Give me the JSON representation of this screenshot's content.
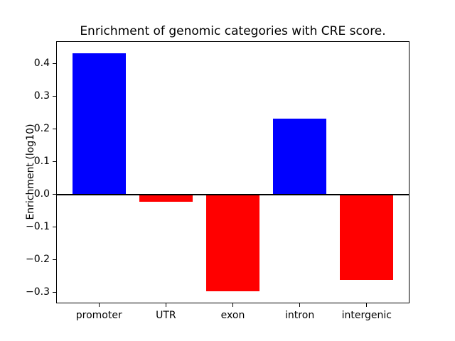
{
  "chart_data": {
    "type": "bar",
    "title": "Enrichment of genomic categories with CRE score.",
    "ylabel": "Enrichment (log10)",
    "xlabel": "",
    "categories": [
      "promoter",
      "UTR",
      "exon",
      "intron",
      "intergenic"
    ],
    "values": [
      0.433,
      -0.022,
      -0.297,
      0.233,
      -0.262
    ],
    "bar_colors": [
      "#0000ff",
      "#ff0000",
      "#ff0000",
      "#0000ff",
      "#ff0000"
    ],
    "positive_color": "#0000ff",
    "negative_color": "#ff0000",
    "bar_width": 0.8,
    "yticks": [
      0.4,
      0.3,
      0.2,
      0.1,
      0.0,
      -0.1,
      -0.2,
      -0.3
    ],
    "ytick_labels": [
      "0.4",
      "0.3",
      "0.2",
      "0.1",
      "0.0",
      "−0.1",
      "−0.2",
      "−0.3"
    ],
    "ylim": [
      -0.3335,
      0.4695
    ],
    "xlim": [
      -0.64,
      4.64
    ],
    "grid": false,
    "legend": null,
    "zero_line": true,
    "frame_color": "#000000",
    "text_color": "#000000",
    "background_color": "#ffffff"
  }
}
